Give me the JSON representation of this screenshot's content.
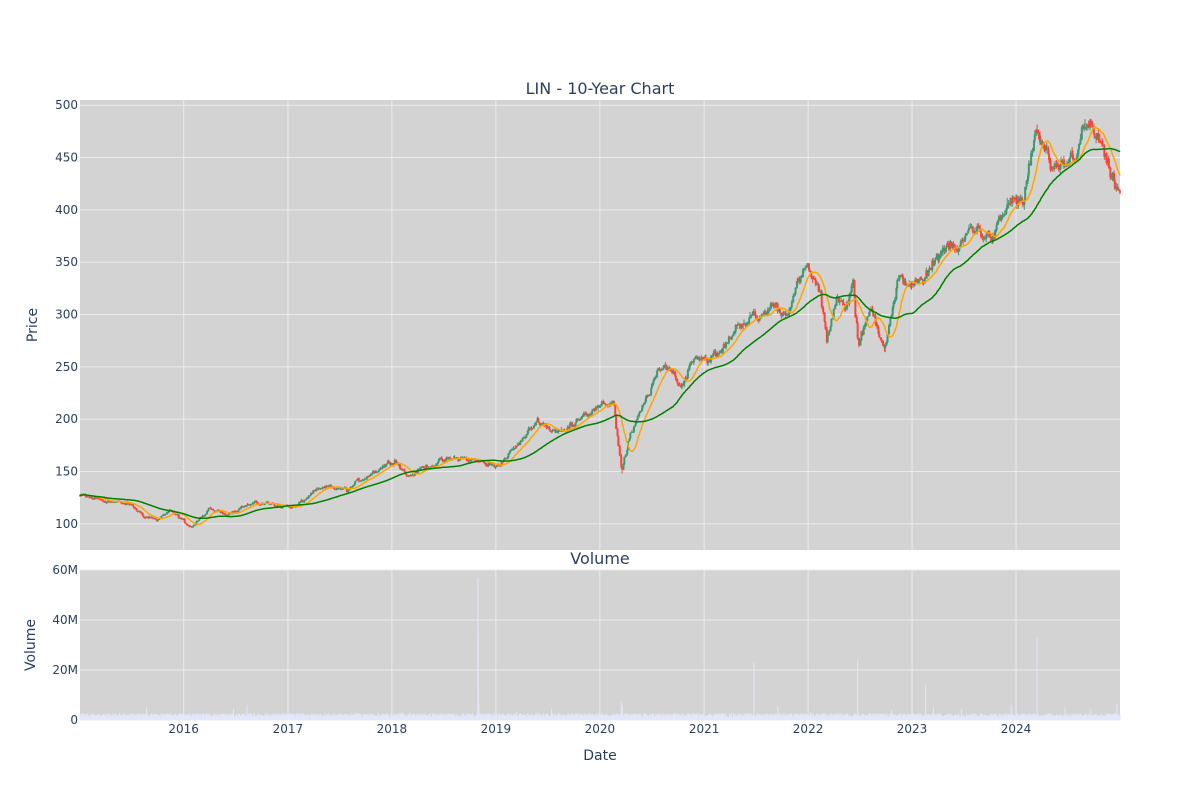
{
  "colors": {
    "plot_bg": "#d3d3d3",
    "grid": "#ebebeb",
    "text": "#2a3f5f",
    "candle_up": "#3d9970",
    "candle_down": "#ff4136",
    "ma_short": "#ffa500",
    "ma_long": "#008000",
    "volume": "#e6e6fa"
  },
  "chart_data": [
    {
      "type": "candlestick",
      "title": "LIN - 10-Year Chart",
      "ylabel": "Price",
      "ylim": [
        75,
        505
      ],
      "yticks": [
        100,
        150,
        200,
        250,
        300,
        350,
        400,
        450,
        500
      ],
      "grid": true,
      "x_domain": [
        "2015-01-02",
        "2024-12-31"
      ],
      "anchors": [
        [
          "2015-01-02",
          127
        ],
        [
          "2015-03-01",
          124
        ],
        [
          "2015-05-01",
          121
        ],
        [
          "2015-07-01",
          118
        ],
        [
          "2015-08-15",
          108
        ],
        [
          "2015-10-01",
          104
        ],
        [
          "2015-11-15",
          112
        ],
        [
          "2016-01-01",
          103
        ],
        [
          "2016-02-01",
          97
        ],
        [
          "2016-04-01",
          113
        ],
        [
          "2016-06-01",
          110
        ],
        [
          "2016-08-01",
          117
        ],
        [
          "2016-10-01",
          120
        ],
        [
          "2016-12-01",
          118
        ],
        [
          "2017-02-01",
          116
        ],
        [
          "2017-04-01",
          130
        ],
        [
          "2017-06-01",
          135
        ],
        [
          "2017-08-01",
          132
        ],
        [
          "2017-10-01",
          145
        ],
        [
          "2017-12-01",
          155
        ],
        [
          "2018-01-15",
          162
        ],
        [
          "2018-03-01",
          145
        ],
        [
          "2018-05-01",
          155
        ],
        [
          "2018-07-01",
          160
        ],
        [
          "2018-09-01",
          163
        ],
        [
          "2018-11-01",
          160
        ],
        [
          "2018-12-31",
          155
        ],
        [
          "2019-02-01",
          162
        ],
        [
          "2019-04-01",
          178
        ],
        [
          "2019-06-01",
          200
        ],
        [
          "2019-07-15",
          190
        ],
        [
          "2019-09-01",
          188
        ],
        [
          "2019-11-01",
          205
        ],
        [
          "2020-01-15",
          212
        ],
        [
          "2020-02-20",
          218
        ],
        [
          "2020-03-20",
          150
        ],
        [
          "2020-04-15",
          180
        ],
        [
          "2020-06-01",
          210
        ],
        [
          "2020-07-15",
          240
        ],
        [
          "2020-09-01",
          252
        ],
        [
          "2020-10-15",
          230
        ],
        [
          "2020-12-01",
          262
        ],
        [
          "2021-01-15",
          258
        ],
        [
          "2021-03-01",
          262
        ],
        [
          "2021-05-01",
          290
        ],
        [
          "2021-06-15",
          298
        ],
        [
          "2021-07-15",
          295
        ],
        [
          "2021-09-01",
          310
        ],
        [
          "2021-10-15",
          300
        ],
        [
          "2021-12-01",
          330
        ],
        [
          "2022-01-01",
          345
        ],
        [
          "2022-02-15",
          320
        ],
        [
          "2022-03-10",
          275
        ],
        [
          "2022-04-15",
          320
        ],
        [
          "2022-05-15",
          305
        ],
        [
          "2022-06-10",
          330
        ],
        [
          "2022-07-01",
          272
        ],
        [
          "2022-08-15",
          305
        ],
        [
          "2022-09-30",
          270
        ],
        [
          "2022-11-15",
          330
        ],
        [
          "2023-01-01",
          332
        ],
        [
          "2023-02-15",
          328
        ],
        [
          "2023-03-15",
          350
        ],
        [
          "2023-05-01",
          365
        ],
        [
          "2023-06-15",
          360
        ],
        [
          "2023-07-31",
          385
        ],
        [
          "2023-09-01",
          380
        ],
        [
          "2023-10-15",
          372
        ],
        [
          "2023-12-15",
          410
        ],
        [
          "2024-01-31",
          405
        ],
        [
          "2024-03-10",
          475
        ],
        [
          "2024-04-15",
          455
        ],
        [
          "2024-05-15",
          432
        ],
        [
          "2024-06-15",
          440
        ],
        [
          "2024-07-31",
          455
        ],
        [
          "2024-08-31",
          478
        ],
        [
          "2024-09-20",
          480
        ],
        [
          "2024-10-31",
          460
        ],
        [
          "2024-11-30",
          430
        ],
        [
          "2024-12-31",
          420
        ]
      ],
      "series": [
        {
          "name": "",
          "kind": "ohlc-candles",
          "up_color": "#3d9970",
          "down_color": "#ff4136"
        },
        {
          "name": "",
          "kind": "moving-average",
          "color": "#ffa500",
          "window_days": 50
        },
        {
          "name": "",
          "kind": "moving-average",
          "color": "#008000",
          "window_days": 200
        }
      ]
    },
    {
      "type": "bar",
      "title": "Volume",
      "ylabel": "Volume",
      "xlabel": "Date",
      "ylim": [
        0,
        60000000
      ],
      "yticks": [
        0,
        20000000,
        40000000,
        60000000
      ],
      "ytick_labels": [
        "0",
        "20M",
        "40M",
        "60M"
      ],
      "grid": true,
      "typical_volume": 1800000,
      "spikes": [
        [
          "2015-08-24",
          5000000
        ],
        [
          "2016-06-24",
          4500000
        ],
        [
          "2016-08-10",
          6000000
        ],
        [
          "2018-02-05",
          3500000
        ],
        [
          "2018-10-30",
          57000000
        ],
        [
          "2018-10-31",
          35000000
        ],
        [
          "2018-11-01",
          12000000
        ],
        [
          "2018-11-02",
          7000000
        ],
        [
          "2019-03-15",
          3500000
        ],
        [
          "2019-07-15",
          4500000
        ],
        [
          "2020-03-16",
          7000000
        ],
        [
          "2020-03-20",
          6000000
        ],
        [
          "2021-06-25",
          23000000
        ],
        [
          "2021-09-17",
          5500000
        ],
        [
          "2022-01-10",
          3500000
        ],
        [
          "2022-06-24",
          24000000
        ],
        [
          "2022-10-21",
          4000000
        ],
        [
          "2023-02-17",
          14000000
        ],
        [
          "2023-03-17",
          5000000
        ],
        [
          "2023-06-23",
          4500000
        ],
        [
          "2023-12-15",
          6000000
        ],
        [
          "2024-03-15",
          33000000
        ],
        [
          "2024-06-21",
          5000000
        ],
        [
          "2024-09-20",
          4500000
        ],
        [
          "2024-12-20",
          6500000
        ]
      ]
    }
  ],
  "x_axis": {
    "label": "Date",
    "ticks": [
      "2016",
      "2017",
      "2018",
      "2019",
      "2020",
      "2021",
      "2022",
      "2023",
      "2024"
    ]
  }
}
